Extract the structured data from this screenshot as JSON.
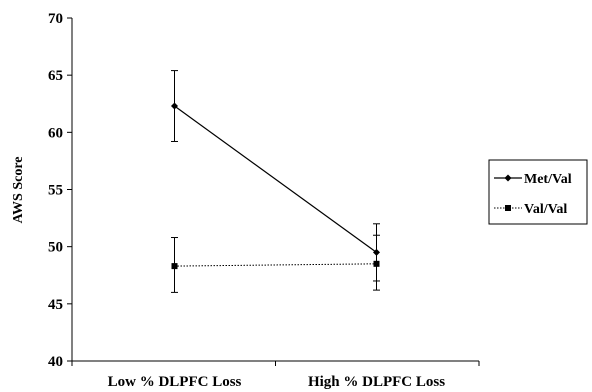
{
  "chart_data": {
    "type": "line",
    "title": "",
    "xlabel": "",
    "ylabel": "AWS Score",
    "categories": [
      "Low % DLPFC Loss",
      "High % DLPFC Loss"
    ],
    "ylim": [
      40,
      70
    ],
    "yticks": [
      40,
      45,
      50,
      55,
      60,
      65,
      70
    ],
    "grid": false,
    "legend_position": "right",
    "series": [
      {
        "name": "Met/Val",
        "marker": "diamond",
        "line_style": "solid",
        "values": [
          62.3,
          49.5
        ],
        "error_low": [
          59.2,
          47.0
        ],
        "error_high": [
          65.4,
          52.0
        ]
      },
      {
        "name": "Val/Val",
        "marker": "square",
        "line_style": "dotted",
        "values": [
          48.3,
          48.5
        ],
        "error_low": [
          46.0,
          46.2
        ],
        "error_high": [
          50.8,
          51.0
        ]
      }
    ]
  }
}
